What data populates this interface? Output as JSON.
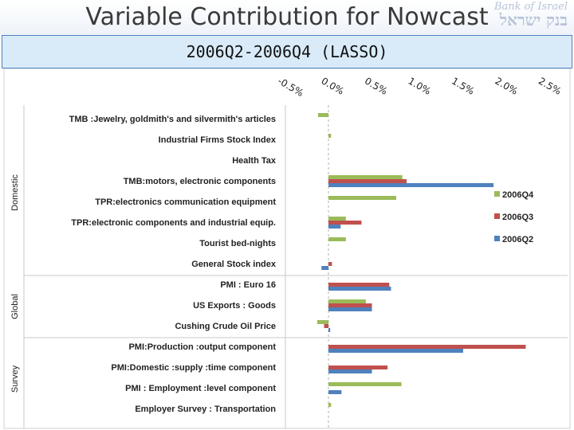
{
  "slide": {
    "title": "Variable Contribution for Nowcast",
    "subtitle": "2006Q2-2006Q4 (LASSO)",
    "logo_en": "Bank of Israel",
    "logo_he": "בנק ישראל"
  },
  "chart_data": {
    "type": "bar",
    "orientation": "horizontal",
    "title": "",
    "xlabel": "",
    "ylabel": "",
    "xlim": [
      -0.5,
      2.5
    ],
    "x_tick_labels": [
      "-0.5%",
      "0.0%",
      "0.5%",
      "1.0%",
      "1.5%",
      "2.0%",
      "2.5%"
    ],
    "x_tick_values": [
      -0.5,
      0.0,
      0.5,
      1.0,
      1.5,
      2.0,
      2.5
    ],
    "grid": false,
    "legend_position": "right",
    "groups": [
      {
        "name": "Domestic",
        "categories": [
          0,
          7
        ]
      },
      {
        "name": "Global",
        "categories": [
          8,
          10
        ]
      },
      {
        "name": "Survey",
        "categories": [
          11,
          14
        ]
      }
    ],
    "categories": [
      "TMB :Jewelry, goldmith's and silvermith's articles",
      "Industrial Firms Stock Index",
      "Health Tax",
      "TMB:motors, electronic components",
      "TPR:electronics communication equipment",
      "TPR:electronic components and industrial equip.",
      "Tourist bed-nights",
      "General Stock index",
      "PMI : Euro 16",
      "US Exports : Goods",
      "Cushing Crude Oil Price",
      "PMI:Production :output component",
      "PMI:Domestic :supply :time component",
      "PMI : Employment :level component",
      "Employer Survey : Transportation"
    ],
    "series": [
      {
        "name": "2006Q4",
        "color": "#9bbb59",
        "values": [
          -0.12,
          0.03,
          0.0,
          0.85,
          0.78,
          0.2,
          0.2,
          0.0,
          0.0,
          0.43,
          -0.13,
          0.0,
          0.0,
          0.84,
          0.03
        ]
      },
      {
        "name": "2006Q3",
        "color": "#c0504d",
        "values": [
          0.0,
          0.0,
          0.0,
          0.9,
          0.0,
          0.38,
          0.0,
          0.04,
          0.7,
          0.5,
          -0.05,
          2.27,
          0.68,
          0.0,
          0.0
        ]
      },
      {
        "name": "2006Q2",
        "color": "#4f81bd",
        "values": [
          0.0,
          0.0,
          0.0,
          1.9,
          0.0,
          0.14,
          0.0,
          -0.08,
          0.72,
          0.5,
          0.02,
          1.55,
          0.5,
          0.15,
          0.0
        ]
      }
    ]
  }
}
